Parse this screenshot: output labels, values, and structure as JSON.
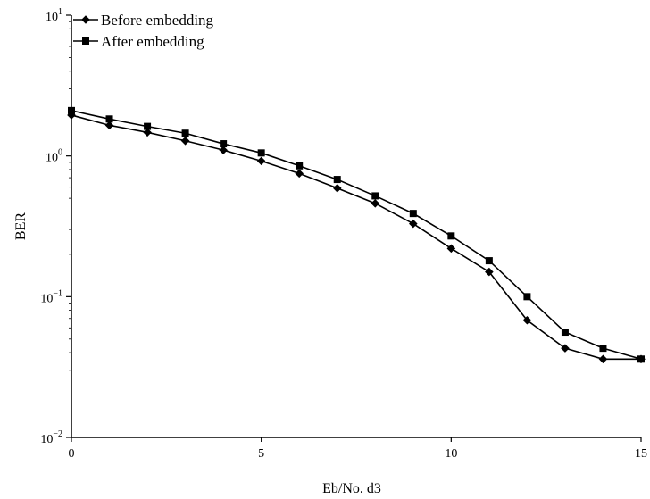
{
  "chart_data": {
    "type": "line",
    "title": "",
    "xlabel": "Eb/No. d3",
    "ylabel": "BER",
    "xlim": [
      0,
      15
    ],
    "ylim": [
      0.01,
      10
    ],
    "y_scale": "log",
    "grid": false,
    "legend_position": "top-left",
    "x_ticks": [
      "0",
      "5",
      "10",
      "15"
    ],
    "y_ticks": [
      {
        "base": "10",
        "exp": "1",
        "value": 10
      },
      {
        "base": "10",
        "exp": "0",
        "value": 1
      },
      {
        "base": "10",
        "exp": "−1",
        "value": 0.1
      },
      {
        "base": "10",
        "exp": "−2",
        "value": 0.01
      }
    ],
    "x": [
      0,
      1,
      2,
      3,
      4,
      5,
      6,
      7,
      8,
      9,
      10,
      11,
      12,
      13,
      14,
      15
    ],
    "series": [
      {
        "name": "Before embedding",
        "marker": "diamond",
        "color": "#000000",
        "values": [
          1.95,
          1.65,
          1.47,
          1.28,
          1.1,
          0.92,
          0.75,
          0.59,
          0.46,
          0.33,
          0.22,
          0.15,
          0.068,
          0.043,
          0.036,
          0.036
        ]
      },
      {
        "name": "After embedding",
        "marker": "square",
        "color": "#000000",
        "values": [
          2.1,
          1.83,
          1.62,
          1.45,
          1.22,
          1.05,
          0.85,
          0.68,
          0.52,
          0.39,
          0.27,
          0.18,
          0.1,
          0.056,
          0.043,
          0.036
        ]
      }
    ]
  }
}
